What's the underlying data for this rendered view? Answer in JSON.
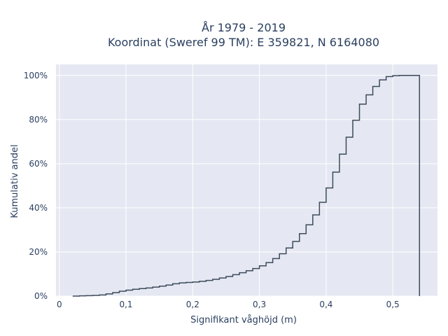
{
  "chart_data": {
    "type": "line",
    "line_shape": "step",
    "title_line1": "År 1979 - 2019",
    "title_line2": "Koordinat (Sweref 99 TM): E 359821, N 6164080",
    "xlabel": "Signifikant våghöjd (m)",
    "ylabel": "Kumulativ andel",
    "xlim": [
      -0.005,
      0.567
    ],
    "ylim": [
      0,
      1.05
    ],
    "x_ticks": [
      0,
      0.1,
      0.2,
      0.3,
      0.4,
      0.5
    ],
    "x_tick_labels": [
      "0",
      "0,1",
      "0,2",
      "0,3",
      "0,4",
      "0,5"
    ],
    "y_ticks": [
      0,
      0.2,
      0.4,
      0.6,
      0.8,
      1.0
    ],
    "y_tick_labels": [
      "0%",
      "20%",
      "40%",
      "60%",
      "80%",
      "100%"
    ],
    "grid": true,
    "colors": {
      "background": "#e5e8f2",
      "grid": "#ffffff",
      "line": "#3d4a5c",
      "text": "#2a3f5f"
    },
    "x": [
      0.02,
      0.03,
      0.04,
      0.05,
      0.06,
      0.07,
      0.08,
      0.09,
      0.1,
      0.11,
      0.12,
      0.13,
      0.14,
      0.15,
      0.16,
      0.17,
      0.18,
      0.19,
      0.2,
      0.21,
      0.22,
      0.23,
      0.24,
      0.25,
      0.26,
      0.27,
      0.28,
      0.29,
      0.3,
      0.31,
      0.32,
      0.33,
      0.34,
      0.35,
      0.36,
      0.37,
      0.38,
      0.39,
      0.4,
      0.41,
      0.42,
      0.43,
      0.44,
      0.45,
      0.46,
      0.47,
      0.48,
      0.49,
      0.5,
      0.51,
      0.52,
      0.53,
      0.54
    ],
    "y": [
      0.0,
      0.001,
      0.002,
      0.003,
      0.005,
      0.01,
      0.016,
      0.022,
      0.027,
      0.031,
      0.034,
      0.037,
      0.041,
      0.045,
      0.05,
      0.056,
      0.06,
      0.062,
      0.064,
      0.067,
      0.071,
      0.076,
      0.082,
      0.089,
      0.097,
      0.106,
      0.115,
      0.125,
      0.137,
      0.152,
      0.17,
      0.192,
      0.218,
      0.248,
      0.283,
      0.323,
      0.368,
      0.425,
      0.49,
      0.562,
      0.643,
      0.72,
      0.797,
      0.87,
      0.912,
      0.95,
      0.98,
      0.995,
      0.999,
      1.0,
      1.0,
      1.0,
      1.0
    ],
    "end_drop": 0.0
  }
}
